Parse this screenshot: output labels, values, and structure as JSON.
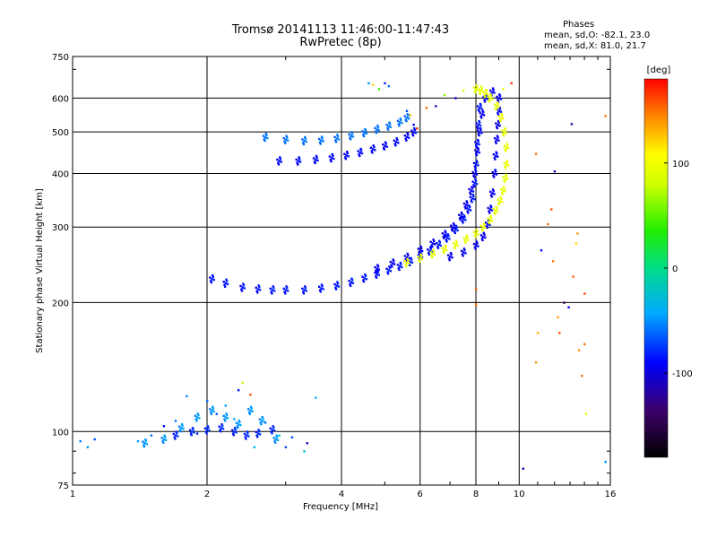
{
  "chart_data": {
    "type": "scatter",
    "title": "Tromsø 20141113 11:46:00-11:47:43",
    "subtitle": "RwPretec (8p)",
    "xlabel": "Frequency [MHz]",
    "ylabel": "Stationary phase Virtual Height [km]",
    "x_scale": "log",
    "y_scale": "log",
    "xlim": [
      1,
      16
    ],
    "ylim": [
      75,
      750
    ],
    "x_ticks": [
      1,
      2,
      4,
      6,
      8,
      10,
      16
    ],
    "y_ticks": [
      75,
      100,
      200,
      300,
      400,
      500,
      600,
      750
    ],
    "grid": true,
    "stats": {
      "heading": "Phases",
      "o_line": "mean, sd,O: -82.1, 23.0",
      "x_line": "mean, sd,X: 81.0, 21.7"
    },
    "colorbar": {
      "label": "[deg]",
      "min": -180,
      "max": 180,
      "ticks": [
        100,
        0,
        -100
      ],
      "colormap": "rainbow"
    },
    "traces": [
      {
        "phase": -85,
        "points": [
          [
            2.05,
            227
          ],
          [
            2.2,
            222
          ],
          [
            2.4,
            217
          ],
          [
            2.6,
            215
          ],
          [
            2.8,
            214
          ],
          [
            3.0,
            214
          ],
          [
            3.3,
            214
          ],
          [
            3.6,
            216
          ],
          [
            3.9,
            219
          ],
          [
            4.2,
            223
          ],
          [
            4.5,
            228
          ],
          [
            4.8,
            233
          ],
          [
            5.1,
            238
          ],
          [
            5.4,
            243
          ],
          [
            5.7,
            249
          ],
          [
            6.0,
            256
          ],
          [
            6.3,
            264
          ],
          [
            6.6,
            273
          ],
          [
            6.9,
            283
          ],
          [
            7.2,
            296
          ],
          [
            7.5,
            313
          ],
          [
            7.7,
            330
          ],
          [
            7.85,
            350
          ],
          [
            7.95,
            380
          ],
          [
            8.0,
            420
          ],
          [
            8.05,
            470
          ],
          [
            8.1,
            520
          ],
          [
            8.15,
            570
          ]
        ]
      },
      {
        "phase": -95,
        "points": [
          [
            4.8,
            240
          ],
          [
            5.2,
            247
          ],
          [
            5.6,
            255
          ],
          [
            6.0,
            265
          ],
          [
            6.4,
            275
          ],
          [
            6.8,
            288
          ],
          [
            7.1,
            300
          ],
          [
            7.4,
            318
          ],
          [
            7.6,
            338
          ],
          [
            7.8,
            365
          ],
          [
            7.95,
            400
          ],
          [
            8.05,
            450
          ],
          [
            8.15,
            500
          ],
          [
            8.25,
            550
          ],
          [
            8.4,
            600
          ],
          [
            8.7,
            620
          ],
          [
            9.0,
            600
          ],
          [
            9.0,
            560
          ],
          [
            8.95,
            520
          ],
          [
            8.9,
            480
          ],
          [
            8.85,
            440
          ],
          [
            8.8,
            400
          ],
          [
            8.7,
            360
          ],
          [
            8.6,
            330
          ],
          [
            8.5,
            305
          ],
          [
            8.3,
            285
          ],
          [
            8.0,
            272
          ],
          [
            7.5,
            262
          ],
          [
            7.0,
            256
          ]
        ]
      },
      {
        "phase": 95,
        "points": [
          [
            5.6,
            248
          ],
          [
            6.0,
            254
          ],
          [
            6.4,
            260
          ],
          [
            6.8,
            266
          ],
          [
            7.2,
            273
          ],
          [
            7.6,
            281
          ],
          [
            8.0,
            290
          ],
          [
            8.3,
            300
          ],
          [
            8.6,
            312
          ],
          [
            8.85,
            328
          ],
          [
            9.05,
            345
          ],
          [
            9.2,
            365
          ],
          [
            9.3,
            390
          ],
          [
            9.35,
            420
          ],
          [
            9.35,
            460
          ],
          [
            9.25,
            500
          ],
          [
            9.1,
            540
          ],
          [
            8.9,
            575
          ],
          [
            8.6,
            600
          ],
          [
            8.4,
            615
          ],
          [
            8.2,
            625
          ],
          [
            8.0,
            630
          ]
        ]
      },
      {
        "phase": -90,
        "points": [
          [
            2.9,
            428
          ],
          [
            3.2,
            428
          ],
          [
            3.5,
            431
          ],
          [
            3.8,
            435
          ],
          [
            4.1,
            441
          ],
          [
            4.4,
            448
          ],
          [
            4.7,
            456
          ],
          [
            5.0,
            464
          ],
          [
            5.3,
            474
          ],
          [
            5.6,
            487
          ],
          [
            5.8,
            500
          ]
        ]
      },
      {
        "phase": -60,
        "points": [
          [
            2.7,
            486
          ],
          [
            3.0,
            480
          ],
          [
            3.3,
            477
          ],
          [
            3.6,
            478
          ],
          [
            3.9,
            483
          ],
          [
            4.2,
            490
          ],
          [
            4.5,
            498
          ],
          [
            4.8,
            507
          ],
          [
            5.1,
            516
          ],
          [
            5.4,
            527
          ],
          [
            5.6,
            540
          ]
        ]
      },
      {
        "phase": -80,
        "points": [
          [
            1.7,
            98
          ],
          [
            1.85,
            100
          ],
          [
            2.0,
            101
          ],
          [
            2.15,
            102
          ],
          [
            2.3,
            100
          ],
          [
            2.45,
            98
          ],
          [
            2.6,
            99
          ],
          [
            2.8,
            101
          ]
        ]
      },
      {
        "phase": -50,
        "points": [
          [
            1.45,
            94
          ],
          [
            1.6,
            96
          ],
          [
            1.75,
            102
          ],
          [
            1.9,
            108
          ],
          [
            2.05,
            112
          ],
          [
            2.2,
            108
          ],
          [
            2.35,
            104
          ],
          [
            2.5,
            112
          ],
          [
            2.65,
            106
          ],
          [
            2.85,
            96
          ]
        ]
      }
    ],
    "scatter_points": [
      [
        1.04,
        95,
        -60
      ],
      [
        1.08,
        92,
        -50
      ],
      [
        1.12,
        96,
        -70
      ],
      [
        1.4,
        95,
        -50
      ],
      [
        1.5,
        98,
        -60
      ],
      [
        1.6,
        103,
        -90
      ],
      [
        1.7,
        106,
        -60
      ],
      [
        1.8,
        121,
        -55
      ],
      [
        1.9,
        99,
        -80
      ],
      [
        2.0,
        118,
        -60
      ],
      [
        2.1,
        110,
        -70
      ],
      [
        2.2,
        115,
        -50
      ],
      [
        2.3,
        107,
        -40
      ],
      [
        2.35,
        125,
        -85
      ],
      [
        2.4,
        130,
        75
      ],
      [
        2.5,
        122,
        160
      ],
      [
        2.55,
        92,
        -40
      ],
      [
        2.7,
        105,
        -60
      ],
      [
        2.9,
        98,
        -30
      ],
      [
        3.0,
        92,
        -70
      ],
      [
        3.1,
        97,
        -70
      ],
      [
        3.3,
        90,
        -30
      ],
      [
        3.35,
        94,
        -110
      ],
      [
        3.5,
        120,
        -40
      ],
      [
        4.6,
        650,
        -50
      ],
      [
        4.7,
        645,
        120
      ],
      [
        4.85,
        630,
        40
      ],
      [
        5.0,
        650,
        -80
      ],
      [
        5.1,
        640,
        -60
      ],
      [
        5.6,
        560,
        -70
      ],
      [
        5.7,
        548,
        130
      ],
      [
        5.8,
        520,
        -90
      ],
      [
        5.9,
        510,
        170
      ],
      [
        6.2,
        570,
        150
      ],
      [
        6.5,
        575,
        -110
      ],
      [
        6.8,
        610,
        60
      ],
      [
        7.2,
        600,
        -95
      ],
      [
        7.5,
        625,
        90
      ],
      [
        9.2,
        630,
        95
      ],
      [
        9.6,
        650,
        165
      ],
      [
        8.0,
        215,
        155
      ],
      [
        8.0,
        198,
        150
      ],
      [
        10.2,
        82,
        -120
      ],
      [
        10.9,
        445,
        150
      ],
      [
        11.2,
        265,
        -90
      ],
      [
        11.0,
        170,
        130
      ],
      [
        10.9,
        145,
        140
      ],
      [
        11.6,
        305,
        150
      ],
      [
        11.8,
        330,
        160
      ],
      [
        11.9,
        250,
        150
      ],
      [
        12.2,
        185,
        140
      ],
      [
        12.3,
        170,
        160
      ],
      [
        12.6,
        200,
        -150
      ],
      [
        12.9,
        195,
        -95
      ],
      [
        13.2,
        230,
        155
      ],
      [
        13.4,
        275,
        120
      ],
      [
        13.5,
        290,
        140
      ],
      [
        13.6,
        155,
        140
      ],
      [
        13.8,
        135,
        150
      ],
      [
        14.0,
        210,
        160
      ],
      [
        14.1,
        110,
        100
      ],
      [
        14.0,
        160,
        150
      ],
      [
        12.0,
        405,
        -110
      ],
      [
        13.1,
        522,
        -120
      ],
      [
        15.6,
        545,
        150
      ],
      [
        15.6,
        85,
        -50
      ]
    ]
  }
}
